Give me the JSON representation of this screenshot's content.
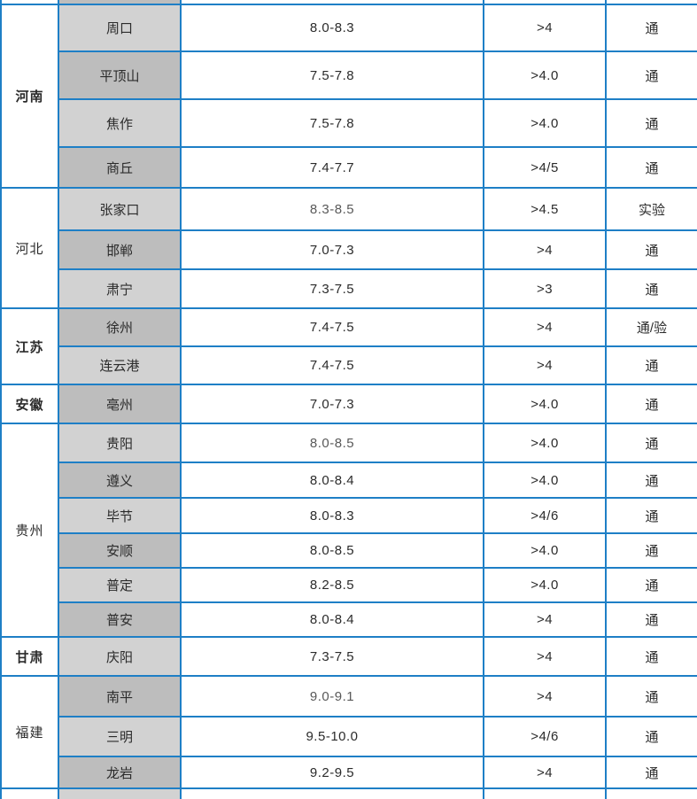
{
  "colors": {
    "border_blue": "#1e7fc6",
    "city_shade_light": "#d2d2d2",
    "city_shade_dark": "#bdbdbd",
    "text_normal": "#2b2b2b",
    "text_muted": "#595959"
  },
  "table": {
    "partial_top_row": {
      "province": "",
      "city": "",
      "price": "",
      "threshold": "",
      "status": "",
      "city_shade": "dark"
    },
    "partial_bottom_row": {
      "province": "",
      "city": "",
      "price": "",
      "threshold": "",
      "status": "",
      "city_shade": "light"
    },
    "groups": [
      {
        "province": "河南",
        "bold": true,
        "rows": [
          {
            "city": "周口",
            "price": "8.0-8.3",
            "threshold": ">4",
            "status": "通",
            "muted": false
          },
          {
            "city": "平顶山",
            "price": "7.5-7.8",
            "threshold": ">4.0",
            "status": "通",
            "muted": false
          },
          {
            "city": "焦作",
            "price": "7.5-7.8",
            "threshold": ">4.0",
            "status": "通",
            "muted": false
          },
          {
            "city": "商丘",
            "price": "7.4-7.7",
            "threshold": ">4/5",
            "status": "通",
            "muted": false
          }
        ]
      },
      {
        "province": "河北",
        "bold": false,
        "rows": [
          {
            "city": "张家口",
            "price": "8.3-8.5",
            "threshold": ">4.5",
            "status": "实验",
            "muted": true
          },
          {
            "city": "邯郸",
            "price": "7.0-7.3",
            "threshold": ">4",
            "status": "通",
            "muted": false
          },
          {
            "city": "肃宁",
            "price": "7.3-7.5",
            "threshold": ">3",
            "status": "通",
            "muted": false
          }
        ]
      },
      {
        "province": "江苏",
        "bold": true,
        "rows": [
          {
            "city": "徐州",
            "price": "7.4-7.5",
            "threshold": ">4",
            "status": "通/验",
            "muted": false
          },
          {
            "city": "连云港",
            "price": "7.4-7.5",
            "threshold": ">4",
            "status": "通",
            "muted": false
          }
        ]
      },
      {
        "province": "安徽",
        "bold": true,
        "rows": [
          {
            "city": "亳州",
            "price": "7.0-7.3",
            "threshold": ">4.0",
            "status": "通",
            "muted": false
          }
        ]
      },
      {
        "province": "贵州",
        "bold": false,
        "rows": [
          {
            "city": "贵阳",
            "price": "8.0-8.5",
            "threshold": ">4.0",
            "status": "通",
            "muted": true
          },
          {
            "city": "遵义",
            "price": "8.0-8.4",
            "threshold": ">4.0",
            "status": "通",
            "muted": false
          },
          {
            "city": "毕节",
            "price": "8.0-8.3",
            "threshold": ">4/6",
            "status": "通",
            "muted": false
          },
          {
            "city": "安顺",
            "price": "8.0-8.5",
            "threshold": ">4.0",
            "status": "通",
            "muted": false
          },
          {
            "city": "普定",
            "price": "8.2-8.5",
            "threshold": ">4.0",
            "status": "通",
            "muted": false
          },
          {
            "city": "普安",
            "price": "8.0-8.4",
            "threshold": ">4",
            "status": "通",
            "muted": false
          }
        ]
      },
      {
        "province": "甘肃",
        "bold": true,
        "rows": [
          {
            "city": "庆阳",
            "price": "7.3-7.5",
            "threshold": ">4",
            "status": "通",
            "muted": false
          }
        ]
      },
      {
        "province": "福建",
        "bold": false,
        "rows": [
          {
            "city": "南平",
            "price": "9.0-9.1",
            "threshold": ">4",
            "status": "通",
            "muted": true
          },
          {
            "city": "三明",
            "price": "9.5-10.0",
            "threshold": ">4/6",
            "status": "通",
            "muted": false
          },
          {
            "city": "龙岩",
            "price": "9.2-9.5",
            "threshold": ">4",
            "status": "通",
            "muted": false
          }
        ]
      }
    ]
  }
}
